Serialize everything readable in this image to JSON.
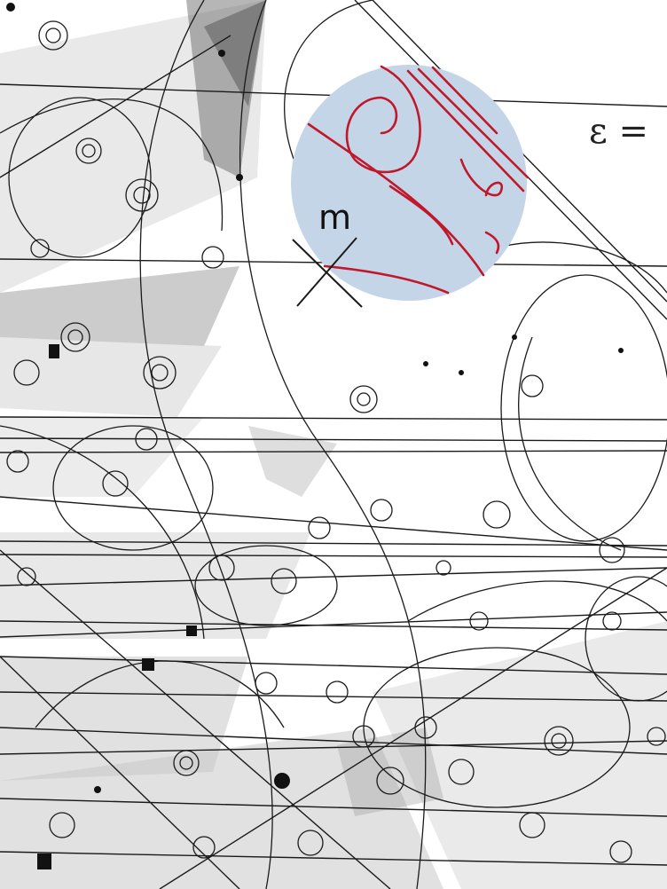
{
  "annotations": {
    "mass_label": "m",
    "formula_fragment": "ε ="
  },
  "colors": {
    "background": "#ffffff",
    "track_ink": "#1a1a1a",
    "shadow_gray": "#9a9a9a",
    "highlight_disc": "#c5d5e8",
    "highlight_track": "#c0182a"
  },
  "icons": {
    "crossing": "x-mark-icon"
  }
}
